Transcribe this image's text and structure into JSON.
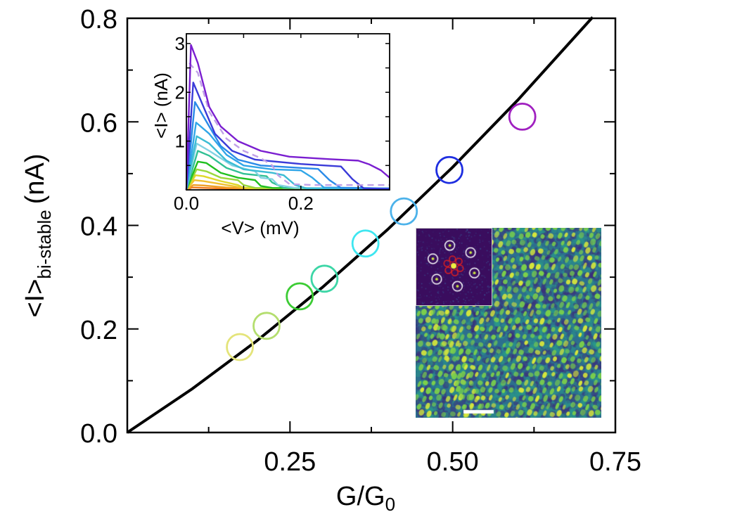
{
  "chart_data": [
    {
      "type": "scatter",
      "xlabel": "G/G",
      "xlabel_sub": "0",
      "ylabel": "<I>",
      "ylabel_sub": "bi-stable",
      "ylabel_unit": "(nA)",
      "xlim": [
        0,
        0.75
      ],
      "ylim": [
        0,
        0.8
      ],
      "xticks": [
        "0.25",
        "0.50",
        "0.75"
      ],
      "xtick_values": [
        0.25,
        0.5,
        0.75
      ],
      "yticks": [
        "0.0",
        "0.2",
        "0.4",
        "0.6",
        "0.8"
      ],
      "ytick_values": [
        0,
        0.2,
        0.4,
        0.6,
        0.8
      ],
      "points": [
        {
          "x": 0.173,
          "y": 0.165,
          "color": "#e4e47a"
        },
        {
          "x": 0.214,
          "y": 0.206,
          "color": "#b4de6e"
        },
        {
          "x": 0.265,
          "y": 0.263,
          "color": "#3ccc34"
        },
        {
          "x": 0.303,
          "y": 0.297,
          "color": "#3cd6a6"
        },
        {
          "x": 0.366,
          "y": 0.365,
          "color": "#3ee6f0"
        },
        {
          "x": 0.425,
          "y": 0.427,
          "color": "#4cb2ea"
        },
        {
          "x": 0.495,
          "y": 0.507,
          "color": "#1e2ee0"
        },
        {
          "x": 0.607,
          "y": 0.61,
          "color": "#a020c0"
        }
      ],
      "fit_line": {
        "color": "#000000",
        "x": [
          0,
          0.1,
          0.2,
          0.3,
          0.4,
          0.5,
          0.6,
          0.715
        ],
        "y": [
          0,
          0.0845,
          0.178,
          0.2805,
          0.392,
          0.5125,
          0.642,
          0.802
        ]
      }
    },
    {
      "type": "line",
      "xlabel": "<V> (mV)",
      "ylabel": "<I> (nA)",
      "xlim": [
        0,
        0.355
      ],
      "ylim": [
        0,
        3.2
      ],
      "xticks": [
        "0.0",
        "0.2"
      ],
      "xtick_values": [
        0,
        0.2
      ],
      "yticks": [
        "1",
        "2",
        "3"
      ],
      "ytick_values": [
        1,
        2,
        3
      ],
      "series": [
        {
          "color": "#f07c20",
          "points": [
            [
              0,
              0
            ],
            [
              0.01,
              0.05
            ],
            [
              0.03,
              0.04
            ],
            [
              0.08,
              0.02
            ],
            [
              0.355,
              0.01
            ]
          ]
        },
        {
          "color": "#f0a028",
          "points": [
            [
              0,
              0
            ],
            [
              0.012,
              0.1
            ],
            [
              0.03,
              0.09
            ],
            [
              0.07,
              0.05
            ],
            [
              0.1,
              0.03
            ],
            [
              0.355,
              0.01
            ]
          ]
        },
        {
          "color": "#f0c030",
          "points": [
            [
              0,
              0
            ],
            [
              0.014,
              0.2
            ],
            [
              0.03,
              0.18
            ],
            [
              0.06,
              0.12
            ],
            [
              0.09,
              0.06
            ],
            [
              0.12,
              0.02
            ],
            [
              0.355,
              0.01
            ]
          ]
        },
        {
          "color": "#e0d828",
          "points": [
            [
              0,
              0
            ],
            [
              0.016,
              0.3
            ],
            [
              0.03,
              0.28
            ],
            [
              0.06,
              0.18
            ],
            [
              0.09,
              0.1
            ],
            [
              0.1,
              0.04
            ],
            [
              0.355,
              0.01
            ]
          ]
        },
        {
          "color": "#9ad83c",
          "points": [
            [
              0,
              0
            ],
            [
              0.018,
              0.42
            ],
            [
              0.035,
              0.38
            ],
            [
              0.06,
              0.25
            ],
            [
              0.09,
              0.2
            ],
            [
              0.1,
              0.1
            ],
            [
              0.12,
              0.04
            ],
            [
              0.355,
              0.01
            ]
          ]
        },
        {
          "color": "#20c020",
          "points": [
            [
              0,
              0
            ],
            [
              0.02,
              0.58
            ],
            [
              0.035,
              0.55
            ],
            [
              0.06,
              0.35
            ],
            [
              0.09,
              0.25
            ],
            [
              0.12,
              0.2
            ],
            [
              0.13,
              0.08
            ],
            [
              0.15,
              0.04
            ],
            [
              0.355,
              0.02
            ]
          ]
        },
        {
          "color": "#30c094",
          "points": [
            [
              0,
              0
            ],
            [
              0.02,
              0.8
            ],
            [
              0.04,
              0.7
            ],
            [
              0.07,
              0.45
            ],
            [
              0.1,
              0.33
            ],
            [
              0.14,
              0.28
            ],
            [
              0.15,
              0.15
            ],
            [
              0.17,
              0.04
            ],
            [
              0.355,
              0.02
            ]
          ]
        },
        {
          "color": "#82d2e2",
          "points": [
            [
              0,
              0
            ],
            [
              0.018,
              0.95
            ],
            [
              0.04,
              0.8
            ],
            [
              0.08,
              0.5
            ],
            [
              0.12,
              0.38
            ],
            [
              0.13,
              0.25
            ],
            [
              0.15,
              0.22
            ],
            [
              0.16,
              0.1
            ],
            [
              0.19,
              0.04
            ],
            [
              0.355,
              0.03
            ]
          ]
        },
        {
          "color": "#3cbcd4",
          "points": [
            [
              0,
              0
            ],
            [
              0.018,
              1.1
            ],
            [
              0.04,
              0.95
            ],
            [
              0.07,
              0.6
            ],
            [
              0.1,
              0.42
            ],
            [
              0.15,
              0.35
            ],
            [
              0.17,
              0.3
            ],
            [
              0.19,
              0.1
            ],
            [
              0.21,
              0.03
            ],
            [
              0.355,
              0.03
            ]
          ]
        },
        {
          "color": "#30a6e8",
          "points": [
            [
              0,
              0
            ],
            [
              0.017,
              1.38
            ],
            [
              0.04,
              1.15
            ],
            [
              0.07,
              0.72
            ],
            [
              0.1,
              0.5
            ],
            [
              0.15,
              0.42
            ],
            [
              0.2,
              0.4
            ],
            [
              0.22,
              0.25
            ],
            [
              0.24,
              0.05
            ],
            [
              0.355,
              0.03
            ]
          ]
        },
        {
          "color": "#2a8ae8",
          "points": [
            [
              0,
              0
            ],
            [
              0.015,
              1.8
            ],
            [
              0.035,
              1.4
            ],
            [
              0.06,
              0.9
            ],
            [
              0.09,
              0.62
            ],
            [
              0.13,
              0.5
            ],
            [
              0.2,
              0.45
            ],
            [
              0.23,
              0.43
            ],
            [
              0.25,
              0.2
            ],
            [
              0.27,
              0.04
            ],
            [
              0.355,
              0.03
            ]
          ]
        },
        {
          "color": "#3a3ad8",
          "points": [
            [
              0,
              0
            ],
            [
              0.012,
              2.2
            ],
            [
              0.03,
              1.7
            ],
            [
              0.05,
              1.15
            ],
            [
              0.08,
              0.8
            ],
            [
              0.12,
              0.62
            ],
            [
              0.2,
              0.53
            ],
            [
              0.27,
              0.48
            ],
            [
              0.29,
              0.22
            ],
            [
              0.31,
              0.03
            ],
            [
              0.355,
              0.02
            ]
          ]
        },
        {
          "color": "#c0a0e8",
          "dashed": true,
          "points": [
            [
              0.005,
              2.6
            ],
            [
              0.02,
              2.4
            ],
            [
              0.04,
              1.6
            ],
            [
              0.07,
              1.05
            ],
            [
              0.1,
              0.8
            ],
            [
              0.13,
              0.65
            ],
            [
              0.15,
              0.5
            ],
            [
              0.16,
              0.3
            ],
            [
              0.18,
              0.12
            ],
            [
              0.22,
              0.1
            ],
            [
              0.355,
              0.1
            ]
          ]
        },
        {
          "color": "#7a1ed0",
          "points": [
            [
              0,
              0
            ],
            [
              0.008,
              2.97
            ],
            [
              0.02,
              2.6
            ],
            [
              0.04,
              1.7
            ],
            [
              0.06,
              1.3
            ],
            [
              0.09,
              1.0
            ],
            [
              0.13,
              0.8
            ],
            [
              0.18,
              0.68
            ],
            [
              0.25,
              0.63
            ],
            [
              0.3,
              0.6
            ],
            [
              0.32,
              0.52
            ],
            [
              0.34,
              0.4
            ],
            [
              0.355,
              0.25
            ]
          ]
        }
      ]
    }
  ],
  "image_inset": {
    "colormap": [
      "#3b2a7a",
      "#2a8c8c",
      "#d8e83a"
    ],
    "fft_background": "#3a0d5e",
    "fft_marker_colors": {
      "outer": "#ffffff",
      "inner": "#e02020"
    }
  }
}
